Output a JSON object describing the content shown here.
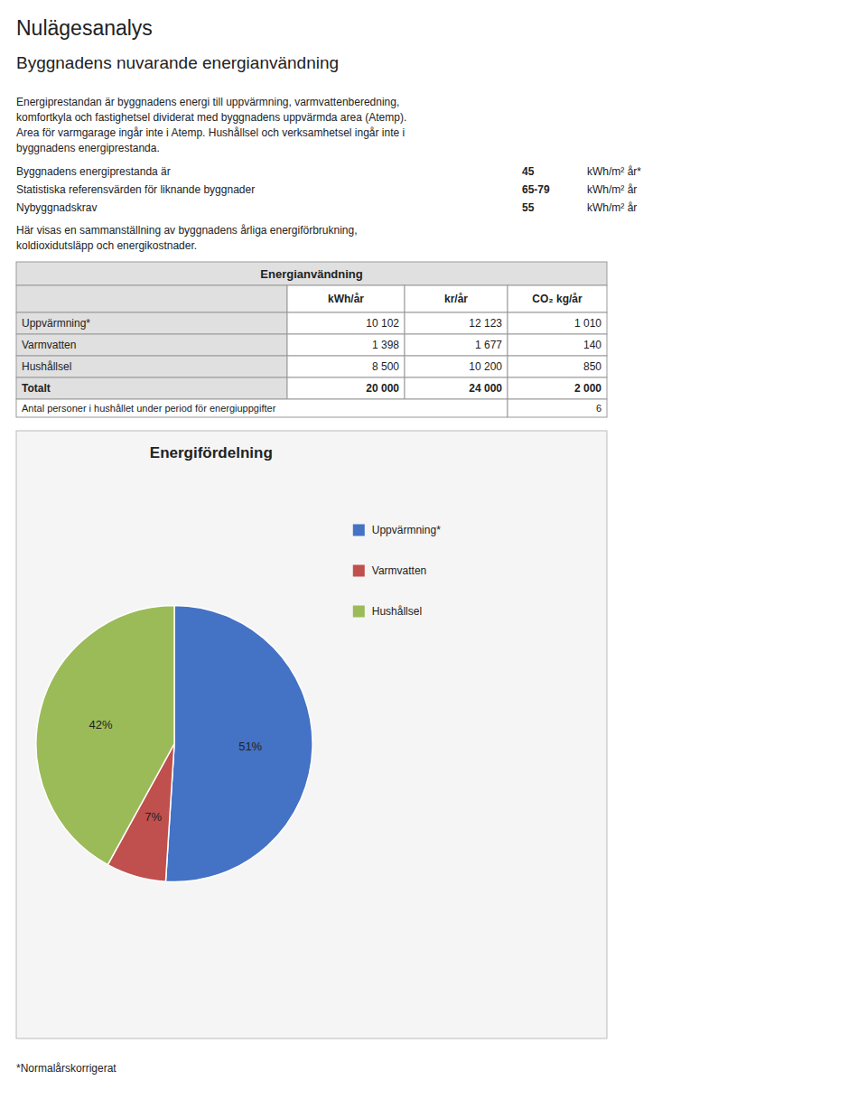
{
  "page": {
    "title": "Nulägesanalys",
    "section_title": "Byggnadens nuvarande energianvändning",
    "paragraph1": [
      "Energiprestandan är byggnadens energi till uppvärmning, varmvattenberedning,",
      "komfortkyla och fastighetsel dividerat med byggnadens uppvärmda area (Atemp).",
      "Area för varmgarage ingår inte i Atemp. Hushållsel och verksamhetsel ingår inte i",
      "byggnadens energiprestanda."
    ],
    "stats": [
      {
        "label": "Byggnadens energiprestanda är",
        "value": "45",
        "unit": "kWh/m² år*"
      },
      {
        "label": "Statistiska referensvärden för liknande byggnader",
        "value": "65-79",
        "unit": "kWh/m² år"
      },
      {
        "label": "Nybyggnadskrav",
        "value": "55",
        "unit": "kWh/m² år"
      }
    ],
    "paragraph2": [
      "Här visas en sammanställning av byggnadens årliga energiförbrukning,",
      "koldioxidutsläpp och energikostnader."
    ],
    "table": {
      "title": "Energianvändning",
      "columns": [
        "kWh/år",
        "kr/år",
        "CO₂ kg/år"
      ],
      "rows": [
        [
          "Uppvärmning*",
          "10 102",
          "12 123",
          "1 010"
        ],
        [
          "Varmvatten",
          "1 398",
          "1 677",
          "140"
        ],
        [
          "Hushållsel",
          "8 500",
          "10 200",
          "850"
        ],
        [
          "Totalt",
          "20 000",
          "24 000",
          "2 000"
        ]
      ],
      "footer": "Antal personer i hushållet under period för energiuppgifter",
      "footer_value": "6"
    },
    "footnote": "*Normalårskorrigerat"
  },
  "chart_data": {
    "type": "pie",
    "title": "Energifördelning",
    "categories": [
      "Uppvärmning*",
      "Varmvatten",
      "Hushållsel"
    ],
    "values": [
      51,
      7,
      42
    ],
    "value_labels": [
      "51%",
      "7%",
      "42%"
    ],
    "colors": [
      "#4472C4",
      "#C0504D",
      "#9BBB59"
    ],
    "data_labels": true,
    "legend": "right"
  }
}
